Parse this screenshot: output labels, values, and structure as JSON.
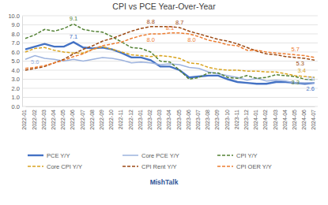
{
  "chart_data": {
    "type": "line",
    "title": "CPI vs PCE Year-Over-Year",
    "source": "MishTalk",
    "x": [
      "2022-01",
      "2022-02",
      "2022-03",
      "2022-04",
      "2022-05",
      "2022-06",
      "2022-07",
      "2022-08",
      "2022-09",
      "2022-10",
      "2022-11",
      "2022-12",
      "2023-01",
      "2023-02",
      "2023-03",
      "2023-04",
      "2023-05",
      "2023-06",
      "2023-07",
      "2023-08",
      "2023-09",
      "2023-10",
      "2023-11",
      "2023-12",
      "2024-01",
      "2024-02",
      "2024-03",
      "2024-04",
      "2024-05",
      "2024-06",
      "2024-07"
    ],
    "ylim": [
      0,
      10
    ],
    "yticks": [
      {
        "value": 0,
        "label": "0.0"
      },
      {
        "value": 1,
        "label": "1.0"
      },
      {
        "value": 2,
        "label": "2.0"
      },
      {
        "value": 3,
        "label": "3.0"
      },
      {
        "value": 4,
        "label": "4.0"
      },
      {
        "value": 5,
        "label": "5.0"
      },
      {
        "value": 6,
        "label": "6.0"
      },
      {
        "value": 7,
        "label": "7.0"
      },
      {
        "value": 8,
        "label": "8.0"
      },
      {
        "value": 9,
        "label": "9.0"
      },
      {
        "value": 10,
        "label": "10.0"
      }
    ],
    "grid": true,
    "legend": "bottom",
    "series": [
      {
        "name": "PCE Y/Y",
        "color": "#4472c4",
        "line_style": "solid",
        "values": [
          6.3,
          6.6,
          6.9,
          6.6,
          6.6,
          7.1,
          6.5,
          6.4,
          6.5,
          6.3,
          5.9,
          5.4,
          5.4,
          5.1,
          4.4,
          4.4,
          4.0,
          3.2,
          3.3,
          3.4,
          3.4,
          3.0,
          2.7,
          2.6,
          2.5,
          2.5,
          2.7,
          2.7,
          2.6,
          2.5,
          2.6
        ]
      },
      {
        "name": "Core PCE Y/Y",
        "color": "#9db3de",
        "line_style": "solid",
        "values": [
          5.2,
          5.6,
          5.3,
          5.2,
          5.0,
          5.2,
          5.0,
          5.2,
          5.4,
          5.3,
          5.1,
          4.8,
          4.9,
          4.8,
          4.6,
          4.7,
          4.6,
          4.3,
          4.2,
          3.8,
          3.6,
          3.4,
          3.2,
          2.9,
          3.1,
          2.8,
          2.9,
          2.8,
          2.6,
          2.6,
          2.6
        ]
      },
      {
        "name": "CPI Y/Y",
        "color": "#548235",
        "line_style": "dashed",
        "values": [
          7.5,
          7.9,
          8.5,
          8.3,
          8.6,
          9.1,
          8.5,
          8.3,
          8.2,
          7.7,
          7.1,
          6.5,
          6.4,
          6.0,
          5.0,
          4.9,
          4.0,
          3.0,
          3.2,
          3.7,
          3.7,
          3.2,
          3.1,
          3.4,
          3.1,
          3.2,
          3.5,
          3.4,
          3.3,
          3.0,
          2.9
        ]
      },
      {
        "name": "Core CPI Y/Y",
        "color": "#d9a420",
        "line_style": "dashed",
        "values": [
          6.0,
          6.4,
          6.5,
          6.2,
          6.0,
          5.9,
          5.9,
          6.3,
          6.6,
          6.3,
          6.0,
          5.7,
          5.6,
          5.5,
          5.6,
          5.5,
          5.3,
          4.8,
          4.7,
          4.3,
          4.1,
          4.0,
          4.0,
          3.9,
          3.9,
          3.8,
          3.8,
          3.6,
          3.4,
          3.3,
          3.2
        ]
      },
      {
        "name": "CPI Rent Y/Y",
        "color": "#9c4a14",
        "line_style": "dashed",
        "values": [
          4.0,
          4.2,
          4.4,
          4.8,
          5.2,
          5.8,
          6.3,
          6.7,
          7.2,
          7.5,
          7.9,
          8.3,
          8.6,
          8.8,
          8.8,
          8.8,
          8.7,
          8.3,
          8.0,
          7.7,
          7.4,
          7.2,
          6.9,
          6.5,
          6.1,
          5.8,
          5.7,
          5.5,
          5.4,
          5.3,
          5.1
        ]
      },
      {
        "name": "CPI OER Y/Y",
        "color": "#ed7d31",
        "line_style": "dashed",
        "values": [
          4.2,
          4.3,
          4.5,
          4.8,
          5.1,
          5.5,
          5.8,
          6.3,
          6.7,
          6.9,
          7.1,
          7.5,
          7.8,
          8.0,
          8.0,
          8.1,
          8.1,
          8.0,
          7.7,
          7.3,
          7.1,
          6.8,
          6.7,
          6.2,
          6.2,
          6.0,
          5.9,
          5.8,
          5.7,
          5.6,
          5.4
        ]
      }
    ],
    "annotations": [
      {
        "text": "9.1",
        "series": 2,
        "index": 5
      },
      {
        "text": "7.1",
        "series": 0,
        "index": 5
      },
      {
        "text": "5.6",
        "series": 1,
        "index": 1
      },
      {
        "text": "8.8",
        "series": 4,
        "index": 13
      },
      {
        "text": "8.7",
        "series": 4,
        "index": 16
      },
      {
        "text": "8.0",
        "series": 5,
        "index": 13
      },
      {
        "text": "8.1",
        "series": 5,
        "index": 15
      },
      {
        "text": "8.0",
        "series": 5,
        "index": 17
      },
      {
        "text": "5.7",
        "series": 5,
        "index": 28
      },
      {
        "text": "5.3",
        "series": 4,
        "index": 29
      },
      {
        "text": "3.4",
        "series": 3,
        "index": 28
      },
      {
        "text": "3.3",
        "series": 2,
        "index": 28
      },
      {
        "text": "2.6",
        "series": 1,
        "index": 30
      },
      {
        "text": "2.6",
        "series": 0,
        "index": 30
      }
    ]
  }
}
